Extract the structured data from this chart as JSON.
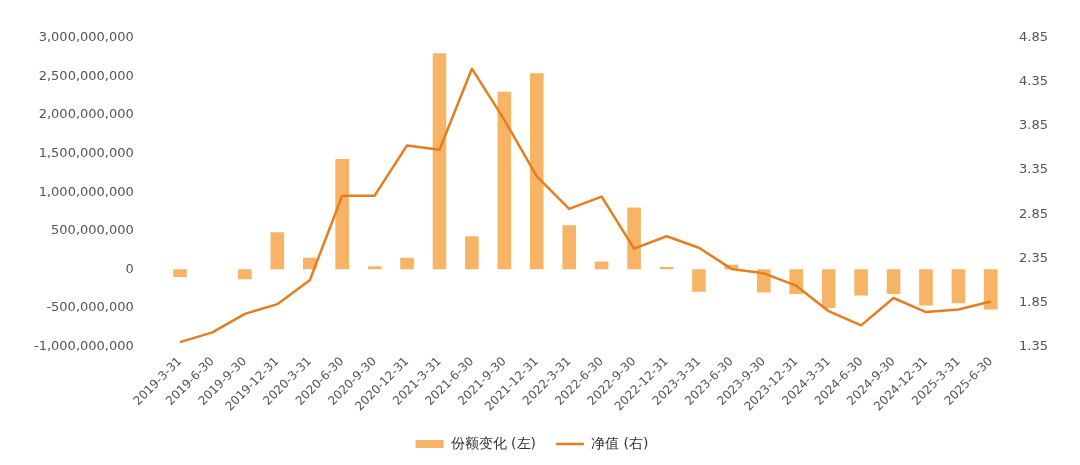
{
  "chart_data": {
    "type": "bar",
    "categories": [
      "2019-3-31",
      "2019-6-30",
      "2019-9-30",
      "2019-12-31",
      "2020-3-31",
      "2020-6-30",
      "2020-9-30",
      "2020-12-31",
      "2021-3-31",
      "2021-6-30",
      "2021-9-30",
      "2021-12-31",
      "2022-3-31",
      "2022-6-30",
      "2022-9-30",
      "2022-12-31",
      "2023-3-31",
      "2023-6-30",
      "2023-9-30",
      "2023-12-31",
      "2024-3-31",
      "2024-6-30",
      "2024-9-30",
      "2024-12-31",
      "2025-3-31",
      "2025-6-30"
    ],
    "series": [
      {
        "name": "份额变化 (左)",
        "color": "#f7b467",
        "values": [
          -100000000,
          0,
          -130000000,
          480000000,
          150000000,
          1430000000,
          40000000,
          150000000,
          2800000000,
          430000000,
          2300000000,
          2540000000,
          570000000,
          100000000,
          800000000,
          30000000,
          -290000000,
          60000000,
          -300000000,
          -320000000,
          -500000000,
          -340000000,
          -320000000,
          -470000000,
          -440000000,
          -520000000
        ]
      },
      {
        "name": "净值 (右)",
        "type": "line",
        "axis": "y2",
        "color": "#e67e1e",
        "values": [
          1.4,
          1.51,
          1.72,
          1.83,
          2.1,
          3.06,
          3.06,
          3.63,
          3.58,
          4.5,
          3.92,
          3.28,
          2.91,
          3.05,
          2.46,
          2.6,
          2.47,
          2.23,
          2.18,
          2.04,
          1.75,
          1.59,
          1.9,
          1.74,
          1.77,
          1.86
        ]
      }
    ],
    "ylim": [
      -1000000000,
      3000000000
    ],
    "yticks": [
      {
        "value": -1000000000,
        "label": "-1,000,000,000"
      },
      {
        "value": -500000000,
        "label": "-500,000,000"
      },
      {
        "value": 0,
        "label": "0"
      },
      {
        "value": 500000000,
        "label": "500,000,000"
      },
      {
        "value": 1000000000,
        "label": "1,000,000,000"
      },
      {
        "value": 1500000000,
        "label": "1,500,000,000"
      },
      {
        "value": 2000000000,
        "label": "2,000,000,000"
      },
      {
        "value": 2500000000,
        "label": "2,500,000,000"
      },
      {
        "value": 3000000000,
        "label": "3,000,000,000"
      }
    ],
    "y2lim": [
      1.35,
      4.85
    ],
    "y2ticks": [
      1.35,
      1.85,
      2.35,
      2.85,
      3.35,
      3.85,
      4.35,
      4.85
    ],
    "grid": false,
    "legend": "bottom",
    "marker": "none",
    "line_style": "solid"
  }
}
